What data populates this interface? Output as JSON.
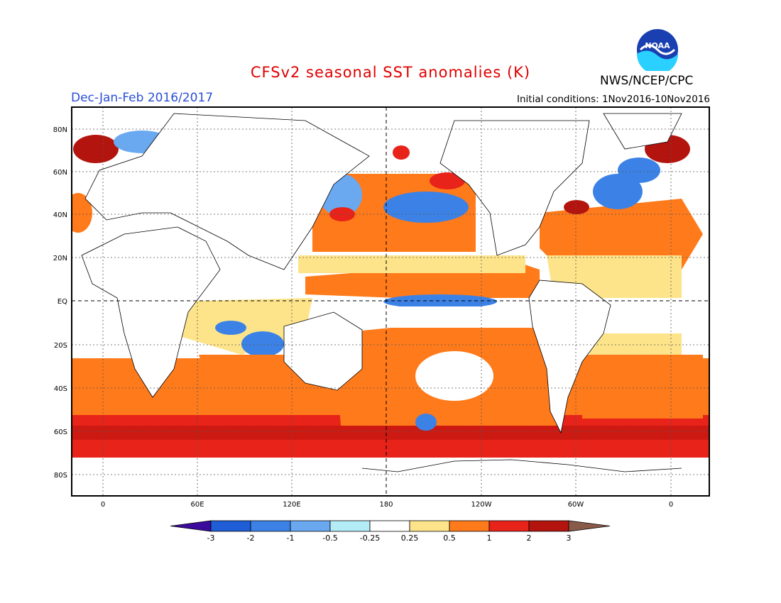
{
  "header": {
    "title": "CFSv2 seasonal SST anomalies (K)",
    "period": "Dec-Jan-Feb 2016/2017",
    "initial_conditions": "Initial conditions: 1Nov2016-10Nov2016",
    "agency": "NWS/NCEP/CPC",
    "logo_text": "NOAA"
  },
  "map": {
    "lat_labels": [
      "80N",
      "60N",
      "40N",
      "20N",
      "EQ",
      "20S",
      "40S",
      "60S",
      "80S"
    ],
    "lon_labels": [
      "0",
      "60E",
      "120E",
      "180",
      "120W",
      "60W",
      "0"
    ]
  },
  "colorbar": {
    "tick_labels": [
      "-3",
      "-2",
      "-1",
      "-0.5",
      "-0.25",
      "0.25",
      "0.5",
      "1",
      "2",
      "3"
    ],
    "colors": [
      "#3b0a9c",
      "#1f5ed6",
      "#3c82e6",
      "#6aa8f0",
      "#b4ecf6",
      "#ffffff",
      "#fde48a",
      "#ff7a1a",
      "#e8231a",
      "#b4140e",
      "#8a5a48"
    ]
  },
  "colors": {
    "title": "#e00000",
    "period": "#2a4fd6",
    "land": "#ffffff"
  }
}
